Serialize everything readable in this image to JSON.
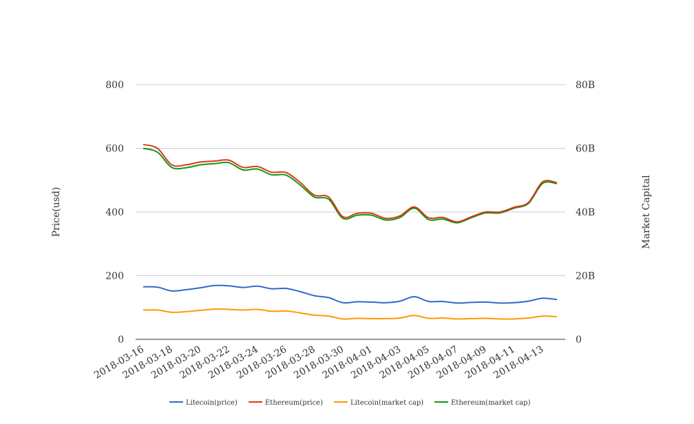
{
  "chart_data": {
    "type": "line",
    "x": [
      "2018-03-16",
      "2018-03-17",
      "2018-03-18",
      "2018-03-19",
      "2018-03-20",
      "2018-03-21",
      "2018-03-22",
      "2018-03-23",
      "2018-03-24",
      "2018-03-25",
      "2018-03-26",
      "2018-03-27",
      "2018-03-28",
      "2018-03-29",
      "2018-03-30",
      "2018-03-31",
      "2018-04-01",
      "2018-04-02",
      "2018-04-03",
      "2018-04-04",
      "2018-04-05",
      "2018-04-06",
      "2018-04-07",
      "2018-04-08",
      "2018-04-09",
      "2018-04-10",
      "2018-04-11",
      "2018-04-12",
      "2018-04-13",
      "2018-04-14"
    ],
    "x_tick_labels": [
      "2018-03-16",
      "2018-03-18",
      "2018-03-20",
      "2018-03-22",
      "2018-03-24",
      "2018-03-26",
      "2018-03-28",
      "2018-03-30",
      "2018-04-01",
      "2018-04-03",
      "2018-04-05",
      "2018-04-07",
      "2018-04-09",
      "2018-04-11",
      "2018-04-13"
    ],
    "ylabel": "Price(usd)",
    "ylabel_right": "Market Capital",
    "ylim": [
      0,
      800
    ],
    "ylim_right": [
      0,
      80000000000
    ],
    "yticks": [
      "0",
      "200",
      "400",
      "600",
      "800"
    ],
    "yticks_right": [
      "0",
      "20B",
      "40B",
      "60B",
      "80B"
    ],
    "grid": true,
    "legend_position": "bottom",
    "series": [
      {
        "name": "Litecoin(price)",
        "axis": "left",
        "color": "#3366cc",
        "values": [
          165,
          164,
          152,
          156,
          162,
          169,
          168,
          163,
          167,
          159,
          160,
          150,
          137,
          131,
          115,
          118,
          117,
          115,
          120,
          134,
          119,
          119,
          114,
          116,
          117,
          114,
          115,
          120,
          129,
          125
        ]
      },
      {
        "name": "Ethereum(price)",
        "axis": "left",
        "color": "#dc3912",
        "values": [
          612,
          600,
          548,
          548,
          557,
          560,
          563,
          540,
          543,
          525,
          524,
          493,
          453,
          447,
          385,
          396,
          396,
          380,
          388,
          416,
          382,
          383,
          369,
          385,
          400,
          400,
          415,
          430,
          495,
          492
        ]
      },
      {
        "name": "Litecoin(market cap)",
        "axis": "right",
        "color": "#ff9900",
        "values": [
          9200000000,
          9200000000,
          8500000000,
          8700000000,
          9100000000,
          9500000000,
          9400000000,
          9200000000,
          9400000000,
          8800000000,
          8900000000,
          8300000000,
          7600000000,
          7300000000,
          6400000000,
          6600000000,
          6500000000,
          6500000000,
          6700000000,
          7500000000,
          6600000000,
          6700000000,
          6400000000,
          6500000000,
          6600000000,
          6400000000,
          6400000000,
          6700000000,
          7300000000,
          7100000000
        ]
      },
      {
        "name": "Ethereum(market cap)",
        "axis": "right",
        "color": "#109618",
        "values": [
          60000000000,
          58800000000,
          54000000000,
          53900000000,
          54800000000,
          55200000000,
          55500000000,
          53200000000,
          53500000000,
          51700000000,
          51600000000,
          48500000000,
          44700000000,
          44000000000,
          38000000000,
          39000000000,
          39000000000,
          37500000000,
          38300000000,
          41200000000,
          37600000000,
          37800000000,
          36600000000,
          38200000000,
          39700000000,
          39700000000,
          41200000000,
          42700000000,
          49000000000,
          48900000000
        ]
      }
    ]
  }
}
